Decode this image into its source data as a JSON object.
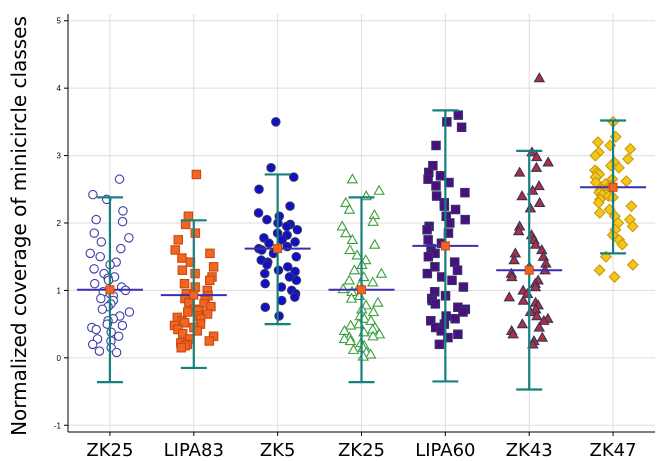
{
  "chart_data": {
    "type": "scatter",
    "ylabel": "Normalized coverage of minicircle classes",
    "xlabel": "",
    "title": "",
    "ylim": [
      -1.1,
      5.1
    ],
    "yticks": [
      -1,
      0,
      1,
      2,
      3,
      4,
      5
    ],
    "grid": true,
    "legend": "none",
    "categories": [
      "ZK25",
      "LIPA83",
      "ZK5",
      "ZK25",
      "LIPA60",
      "ZK43",
      "ZK47"
    ],
    "groups": [
      {
        "category": "ZK25",
        "marker": "circle",
        "filled": false,
        "color": "#3e3ea8",
        "mean": 1.01,
        "sd_low": -0.36,
        "sd_high": 2.38,
        "values": [
          2.65,
          2.42,
          2.35,
          2.18,
          2.05,
          2.02,
          1.85,
          1.78,
          1.72,
          1.62,
          1.55,
          1.5,
          1.42,
          1.38,
          1.32,
          1.25,
          1.2,
          1.18,
          1.15,
          1.1,
          1.05,
          1.0,
          0.98,
          0.95,
          0.92,
          0.88,
          0.85,
          0.8,
          0.76,
          0.72,
          0.68,
          0.62,
          0.58,
          0.55,
          0.5,
          0.48,
          0.45,
          0.42,
          0.38,
          0.32,
          0.28,
          0.25,
          0.2,
          0.15,
          0.1,
          0.08
        ]
      },
      {
        "category": "LIPA83",
        "marker": "square",
        "filled": true,
        "color": "#f26522",
        "mean": 0.93,
        "sd_low": -0.15,
        "sd_high": 2.04,
        "values": [
          2.72,
          2.1,
          1.98,
          1.85,
          1.75,
          1.6,
          1.55,
          1.48,
          1.42,
          1.35,
          1.3,
          1.25,
          1.2,
          1.15,
          1.1,
          1.05,
          1.0,
          0.95,
          0.92,
          0.88,
          0.85,
          0.82,
          0.8,
          0.76,
          0.72,
          0.7,
          0.68,
          0.65,
          0.62,
          0.6,
          0.58,
          0.55,
          0.52,
          0.5,
          0.48,
          0.45,
          0.42,
          0.4,
          0.36,
          0.32,
          0.28,
          0.25,
          0.22,
          0.2,
          0.18,
          0.15
        ]
      },
      {
        "category": "ZK5",
        "marker": "circle",
        "filled": true,
        "color": "#1010c8",
        "mean": 1.62,
        "sd_low": 0.5,
        "sd_high": 2.72,
        "values": [
          3.5,
          2.82,
          2.68,
          2.5,
          2.25,
          2.15,
          2.1,
          2.05,
          2.0,
          1.98,
          1.95,
          1.9,
          1.85,
          1.82,
          1.78,
          1.75,
          1.72,
          1.7,
          1.65,
          1.62,
          1.6,
          1.55,
          1.5,
          1.45,
          1.42,
          1.38,
          1.35,
          1.3,
          1.28,
          1.25,
          1.2,
          1.15,
          1.1,
          1.05,
          1.0,
          0.95,
          0.9,
          0.85,
          0.75,
          0.62
        ]
      },
      {
        "category": "ZK25",
        "marker": "triangle",
        "filled": false,
        "color": "#3a9e3a",
        "mean": 1.01,
        "sd_low": -0.36,
        "sd_high": 2.38,
        "values": [
          2.65,
          2.48,
          2.4,
          2.3,
          2.2,
          2.12,
          2.02,
          1.95,
          1.85,
          1.75,
          1.68,
          1.6,
          1.52,
          1.45,
          1.38,
          1.3,
          1.25,
          1.2,
          1.15,
          1.12,
          1.08,
          1.02,
          0.98,
          0.92,
          0.88,
          0.82,
          0.78,
          0.72,
          0.68,
          0.62,
          0.58,
          0.55,
          0.5,
          0.48,
          0.45,
          0.42,
          0.4,
          0.38,
          0.35,
          0.3,
          0.28,
          0.25,
          0.22,
          0.18,
          0.15,
          0.12,
          0.08,
          0.05,
          0.02,
          0.32
        ]
      },
      {
        "category": "LIPA60",
        "marker": "square",
        "filled": true,
        "color": "#4b0f82",
        "mean": 1.66,
        "sd_low": -0.35,
        "sd_high": 3.67,
        "values": [
          3.6,
          3.5,
          3.42,
          3.15,
          2.85,
          2.75,
          2.7,
          2.65,
          2.6,
          2.55,
          2.45,
          2.4,
          2.3,
          2.25,
          2.2,
          2.1,
          2.05,
          2.0,
          1.95,
          1.9,
          1.85,
          1.75,
          1.7,
          1.62,
          1.55,
          1.5,
          1.42,
          1.35,
          1.3,
          1.25,
          1.2,
          1.15,
          1.05,
          0.98,
          0.92,
          0.88,
          0.85,
          0.8,
          0.75,
          0.72,
          0.68,
          0.62,
          0.58,
          0.55,
          0.5,
          0.45,
          0.4,
          0.35,
          0.3,
          0.2
        ]
      },
      {
        "category": "ZK43",
        "marker": "triangle",
        "filled": true,
        "color": "#b0303a",
        "mean": 1.3,
        "sd_low": -0.47,
        "sd_high": 3.07,
        "values": [
          4.15,
          3.05,
          2.98,
          2.9,
          2.82,
          2.75,
          2.55,
          2.48,
          2.4,
          2.3,
          2.22,
          1.95,
          1.88,
          1.82,
          1.75,
          1.68,
          1.6,
          1.55,
          1.5,
          1.45,
          1.4,
          1.35,
          1.3,
          1.25,
          1.2,
          1.15,
          1.1,
          1.05,
          1.0,
          0.95,
          0.9,
          0.85,
          0.82,
          0.78,
          0.72,
          0.68,
          0.62,
          0.58,
          0.55,
          0.5,
          0.45,
          0.4,
          0.35,
          0.3,
          0.25,
          0.2
        ]
      },
      {
        "category": "ZK47",
        "marker": "diamond",
        "filled": true,
        "color": "#f5c518",
        "mean": 2.53,
        "sd_low": 1.55,
        "sd_high": 3.52,
        "values": [
          3.5,
          3.28,
          3.2,
          3.15,
          3.1,
          3.05,
          3.0,
          2.95,
          2.9,
          2.85,
          2.82,
          2.78,
          2.75,
          2.72,
          2.68,
          2.65,
          2.62,
          2.6,
          2.58,
          2.55,
          2.52,
          2.5,
          2.48,
          2.45,
          2.42,
          2.4,
          2.38,
          2.35,
          2.3,
          2.25,
          2.2,
          2.15,
          2.1,
          2.05,
          2.0,
          1.95,
          1.9,
          1.82,
          1.75,
          1.68,
          1.5,
          1.38,
          1.3,
          1.2
        ]
      }
    ],
    "colors": {
      "mean_line": "#3b2fb0",
      "mean_marker": "#f26522",
      "sd_bar": "#15807d",
      "grid": "#dddddd",
      "axis": "#000000"
    }
  }
}
